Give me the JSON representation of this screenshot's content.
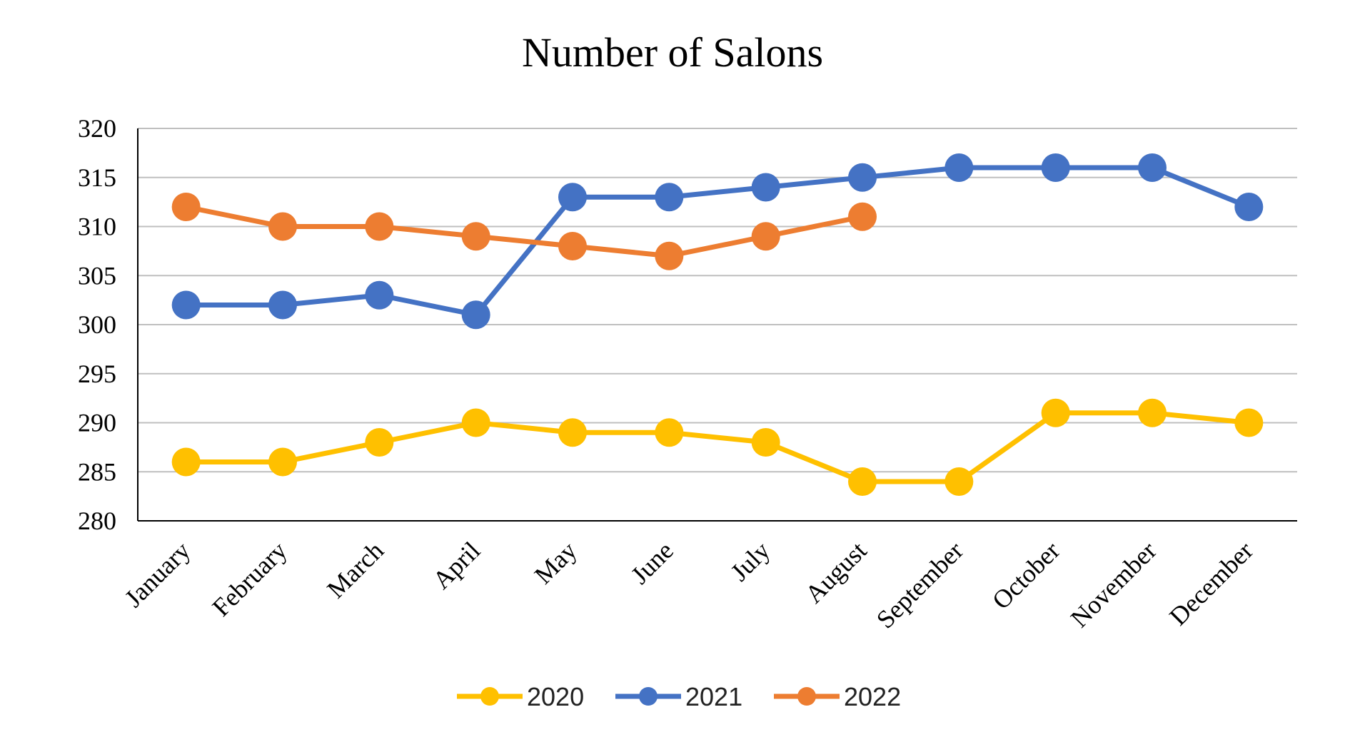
{
  "chart_data": {
    "type": "line",
    "title": "Number of Salons",
    "xlabel": "",
    "ylabel": "",
    "categories": [
      "January",
      "February",
      "March",
      "April",
      "May",
      "June",
      "July",
      "August",
      "September",
      "October",
      "November",
      "December"
    ],
    "ylim": [
      280,
      320
    ],
    "yticks": [
      "320",
      "315",
      "310",
      "305",
      "300",
      "295",
      "290",
      "285",
      "280"
    ],
    "grid": "horizontal",
    "legend_position": "bottom",
    "series": [
      {
        "name": "2020",
        "color": "#FFC000",
        "values": [
          286,
          286,
          288,
          290,
          289,
          289,
          288,
          284,
          284,
          291,
          291,
          290
        ]
      },
      {
        "name": "2021",
        "color": "#4472C4",
        "values": [
          302,
          302,
          303,
          301,
          313,
          313,
          314,
          315,
          316,
          316,
          316,
          312
        ]
      },
      {
        "name": "2022",
        "color": "#ED7D31",
        "values": [
          312,
          310,
          310,
          309,
          308,
          307,
          309,
          311,
          null,
          null,
          null,
          null
        ]
      }
    ]
  }
}
